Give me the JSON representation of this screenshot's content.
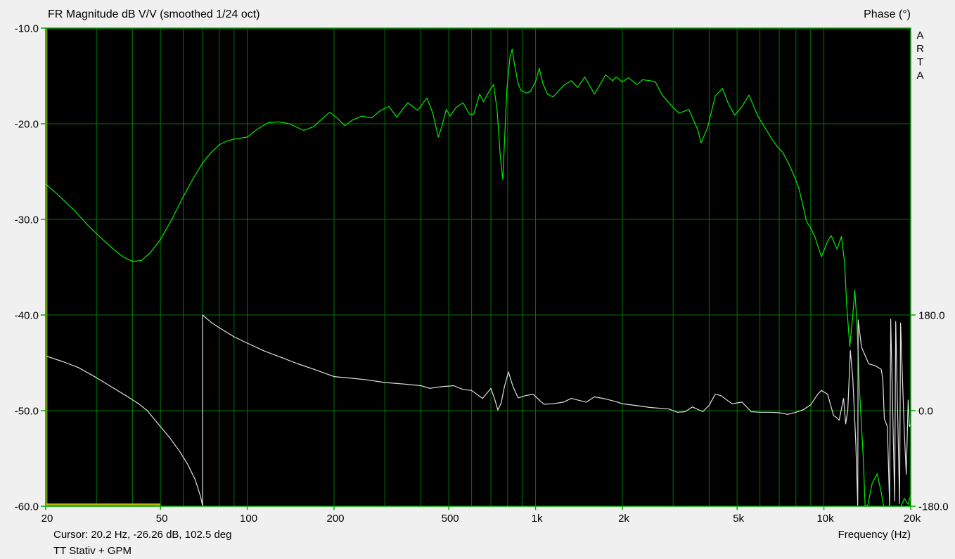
{
  "header": {
    "title": "FR Magnitude dB V/V (smoothed 1/24 oct)",
    "right_axis_title": "Phase (°)",
    "brand": "ARTA"
  },
  "footer": {
    "cursor_readout": "Cursor: 20.2 Hz, -26.26 dB, 102.5 deg",
    "x_axis_title": "Frequency (Hz)",
    "overlay_label": "TT Stativ + GPM"
  },
  "chart_data": {
    "type": "line",
    "title": "FR Magnitude dB V/V (smoothed 1/24 oct)",
    "xlabel": "Frequency (Hz)",
    "x_scale": "log",
    "x_range_hz": [
      20,
      20000
    ],
    "x_gridlines_hz": [
      20,
      30,
      40,
      50,
      60,
      70,
      80,
      90,
      100,
      200,
      300,
      400,
      500,
      600,
      700,
      800,
      900,
      1000,
      2000,
      3000,
      4000,
      5000,
      6000,
      7000,
      8000,
      9000,
      10000,
      20000
    ],
    "x_ticks": [
      {
        "value": 20,
        "label": "20"
      },
      {
        "value": 50,
        "label": "50"
      },
      {
        "value": 100,
        "label": "100"
      },
      {
        "value": 200,
        "label": "200"
      },
      {
        "value": 500,
        "label": "500"
      },
      {
        "value": 1000,
        "label": "1k"
      },
      {
        "value": 2000,
        "label": "2k"
      },
      {
        "value": 5000,
        "label": "5k"
      },
      {
        "value": 10000,
        "label": "10k"
      },
      {
        "value": 20000,
        "label": "20k"
      }
    ],
    "y_left": {
      "name": "magnitude",
      "unit": "dB",
      "range": [
        -60,
        -10
      ],
      "ticks": [
        {
          "value": -10,
          "label": "-10.0"
        },
        {
          "value": -20,
          "label": "-20.0"
        },
        {
          "value": -30,
          "label": "-30.0"
        },
        {
          "value": -40,
          "label": "-40.0"
        },
        {
          "value": -50,
          "label": "-50.0"
        },
        {
          "value": -60,
          "label": "-60.0"
        }
      ]
    },
    "y_right": {
      "name": "phase",
      "unit": "deg",
      "range": [
        -180,
        180
      ],
      "maps_to_db": [
        -60,
        -40
      ],
      "ticks": [
        {
          "value": 180,
          "label": "180.0"
        },
        {
          "value": 0,
          "label": "0.0"
        },
        {
          "value": -180,
          "label": "-180.0"
        }
      ]
    },
    "grid": true,
    "legend": false,
    "cursor": {
      "freq_hz": 20.2,
      "magnitude_db": -26.26,
      "phase_deg": 102.5
    },
    "marker_bar": {
      "from_hz": 20,
      "to_hz": 50
    },
    "colors": {
      "page_bg": "#f0f0f0",
      "plot_bg": "#000000",
      "grid": "#007800",
      "border": "#00a800",
      "magnitude": "#00ef00",
      "phase": "#e0e0e0",
      "cursor": "#e0e000",
      "marker_bar": "#b8b800",
      "text": "#000000"
    },
    "series": [
      {
        "name": "magnitude_db",
        "axis": "left",
        "points": [
          [
            20,
            -26.3
          ],
          [
            22,
            -27.4
          ],
          [
            25,
            -29.0
          ],
          [
            28,
            -30.6
          ],
          [
            31,
            -31.9
          ],
          [
            34,
            -33.0
          ],
          [
            37,
            -33.9
          ],
          [
            40,
            -34.4
          ],
          [
            43,
            -34.3
          ],
          [
            46,
            -33.5
          ],
          [
            50,
            -32.1
          ],
          [
            55,
            -29.9
          ],
          [
            60,
            -27.6
          ],
          [
            65,
            -25.7
          ],
          [
            70,
            -24.1
          ],
          [
            75,
            -23.0
          ],
          [
            80,
            -22.2
          ],
          [
            85,
            -21.8
          ],
          [
            90,
            -21.6
          ],
          [
            100,
            -21.4
          ],
          [
            108,
            -20.6
          ],
          [
            118,
            -19.9
          ],
          [
            128,
            -19.8
          ],
          [
            140,
            -20.0
          ],
          [
            157,
            -20.7
          ],
          [
            170,
            -20.3
          ],
          [
            180,
            -19.6
          ],
          [
            193,
            -18.8
          ],
          [
            205,
            -19.4
          ],
          [
            218,
            -20.2
          ],
          [
            232,
            -19.6
          ],
          [
            250,
            -19.2
          ],
          [
            270,
            -19.4
          ],
          [
            290,
            -18.6
          ],
          [
            310,
            -18.2
          ],
          [
            330,
            -19.3
          ],
          [
            360,
            -17.8
          ],
          [
            390,
            -18.6
          ],
          [
            420,
            -17.3
          ],
          [
            440,
            -18.9
          ],
          [
            460,
            -21.4
          ],
          [
            475,
            -20.1
          ],
          [
            490,
            -18.5
          ],
          [
            505,
            -19.2
          ],
          [
            530,
            -18.3
          ],
          [
            560,
            -17.8
          ],
          [
            590,
            -19.0
          ],
          [
            610,
            -19.0
          ],
          [
            640,
            -16.9
          ],
          [
            660,
            -17.7
          ],
          [
            690,
            -16.6
          ],
          [
            715,
            -15.9
          ],
          [
            735,
            -18.5
          ],
          [
            755,
            -23.5
          ],
          [
            770,
            -25.8
          ],
          [
            780,
            -22.0
          ],
          [
            795,
            -16.5
          ],
          [
            815,
            -13.0
          ],
          [
            830,
            -12.2
          ],
          [
            845,
            -13.8
          ],
          [
            870,
            -15.8
          ],
          [
            890,
            -16.5
          ],
          [
            930,
            -16.8
          ],
          [
            960,
            -16.6
          ],
          [
            1000,
            -15.6
          ],
          [
            1030,
            -14.2
          ],
          [
            1060,
            -15.8
          ],
          [
            1100,
            -16.9
          ],
          [
            1150,
            -17.2
          ],
          [
            1250,
            -16.0
          ],
          [
            1330,
            -15.5
          ],
          [
            1400,
            -16.2
          ],
          [
            1480,
            -15.1
          ],
          [
            1600,
            -16.9
          ],
          [
            1750,
            -14.9
          ],
          [
            1850,
            -15.5
          ],
          [
            1900,
            -15.1
          ],
          [
            2000,
            -15.6
          ],
          [
            2100,
            -15.2
          ],
          [
            2250,
            -15.9
          ],
          [
            2350,
            -15.4
          ],
          [
            2500,
            -15.5
          ],
          [
            2600,
            -15.6
          ],
          [
            2750,
            -17.0
          ],
          [
            3000,
            -18.3
          ],
          [
            3150,
            -18.9
          ],
          [
            3400,
            -18.5
          ],
          [
            3650,
            -20.6
          ],
          [
            3750,
            -22.0
          ],
          [
            3950,
            -20.4
          ],
          [
            4200,
            -17.1
          ],
          [
            4450,
            -16.3
          ],
          [
            4650,
            -17.8
          ],
          [
            4900,
            -19.1
          ],
          [
            5200,
            -18.2
          ],
          [
            5500,
            -17.0
          ],
          [
            5900,
            -19.2
          ],
          [
            6300,
            -20.6
          ],
          [
            6600,
            -21.6
          ],
          [
            6900,
            -22.4
          ],
          [
            7200,
            -23.0
          ],
          [
            7500,
            -24.0
          ],
          [
            7900,
            -25.5
          ],
          [
            8200,
            -26.8
          ],
          [
            8500,
            -28.8
          ],
          [
            8700,
            -30.2
          ],
          [
            9000,
            -30.9
          ],
          [
            9300,
            -31.8
          ],
          [
            9800,
            -33.9
          ],
          [
            10300,
            -32.3
          ],
          [
            10600,
            -31.7
          ],
          [
            11100,
            -33.1
          ],
          [
            11500,
            -31.8
          ],
          [
            11800,
            -34.5
          ],
          [
            12000,
            -39.0
          ],
          [
            12300,
            -43.3
          ],
          [
            12600,
            -40.0
          ],
          [
            12800,
            -37.4
          ],
          [
            13000,
            -40.5
          ],
          [
            13300,
            -48.0
          ],
          [
            13700,
            -55.0
          ],
          [
            13900,
            -60.0
          ],
          [
            14200,
            -59.9
          ],
          [
            14700,
            -57.6
          ],
          [
            15300,
            -56.6
          ],
          [
            15800,
            -58.5
          ],
          [
            16100,
            -60.0
          ],
          [
            18500,
            -60.0
          ],
          [
            19000,
            -59.2
          ],
          [
            19600,
            -59.8
          ],
          [
            20000,
            -58.8
          ]
        ]
      },
      {
        "name": "phase_deg",
        "axis": "right",
        "points": [
          [
            20,
            103
          ],
          [
            23,
            92
          ],
          [
            26,
            81
          ],
          [
            30,
            62
          ],
          [
            34,
            44
          ],
          [
            38,
            28
          ],
          [
            42,
            13
          ],
          [
            45,
            0
          ],
          [
            50,
            -30
          ],
          [
            54,
            -52
          ],
          [
            58,
            -75
          ],
          [
            62,
            -100
          ],
          [
            66,
            -130
          ],
          [
            69,
            -163
          ],
          [
            70,
            -180
          ],
          [
            70,
            180
          ],
          [
            75,
            166
          ],
          [
            80,
            156
          ],
          [
            90,
            139
          ],
          [
            100,
            127
          ],
          [
            115,
            112
          ],
          [
            130,
            101
          ],
          [
            150,
            88
          ],
          [
            170,
            78
          ],
          [
            200,
            64
          ],
          [
            230,
            61
          ],
          [
            260,
            58
          ],
          [
            300,
            53
          ],
          [
            350,
            50
          ],
          [
            400,
            47
          ],
          [
            430,
            42
          ],
          [
            470,
            45
          ],
          [
            520,
            47
          ],
          [
            560,
            40
          ],
          [
            600,
            38
          ],
          [
            655,
            23
          ],
          [
            700,
            42
          ],
          [
            723,
            20
          ],
          [
            740,
            1
          ],
          [
            760,
            15
          ],
          [
            780,
            45
          ],
          [
            805,
            73
          ],
          [
            835,
            45
          ],
          [
            870,
            24
          ],
          [
            920,
            28
          ],
          [
            980,
            31
          ],
          [
            1030,
            20
          ],
          [
            1070,
            12
          ],
          [
            1150,
            13
          ],
          [
            1250,
            16
          ],
          [
            1330,
            23
          ],
          [
            1400,
            20
          ],
          [
            1500,
            16
          ],
          [
            1600,
            26
          ],
          [
            1750,
            22
          ],
          [
            1900,
            17
          ],
          [
            2000,
            13
          ],
          [
            2200,
            10
          ],
          [
            2500,
            6
          ],
          [
            2900,
            3
          ],
          [
            3100,
            -3
          ],
          [
            3300,
            -2
          ],
          [
            3500,
            7
          ],
          [
            3800,
            -2
          ],
          [
            4000,
            10
          ],
          [
            4200,
            31
          ],
          [
            4400,
            28
          ],
          [
            4800,
            13
          ],
          [
            5200,
            16
          ],
          [
            5600,
            -2
          ],
          [
            6000,
            -3
          ],
          [
            6500,
            -3
          ],
          [
            7000,
            -4
          ],
          [
            7500,
            -7
          ],
          [
            8000,
            -3
          ],
          [
            8500,
            2
          ],
          [
            9000,
            11
          ],
          [
            9500,
            30
          ],
          [
            9800,
            38
          ],
          [
            10300,
            31
          ],
          [
            10800,
            -9
          ],
          [
            11000,
            -12
          ],
          [
            11300,
            -18
          ],
          [
            11700,
            23
          ],
          [
            11900,
            -25
          ],
          [
            12100,
            0
          ],
          [
            12350,
            113
          ],
          [
            12600,
            60
          ],
          [
            12900,
            -60
          ],
          [
            13100,
            -178
          ],
          [
            13150,
            171
          ],
          [
            13500,
            120
          ],
          [
            14300,
            88
          ],
          [
            15000,
            85
          ],
          [
            15800,
            78
          ],
          [
            16000,
            60
          ],
          [
            16200,
            -15
          ],
          [
            16600,
            -30
          ],
          [
            16900,
            -178
          ],
          [
            17050,
            172
          ],
          [
            17600,
            -170
          ],
          [
            17750,
            168
          ],
          [
            18300,
            -175
          ],
          [
            18450,
            165
          ],
          [
            19000,
            -40
          ],
          [
            19300,
            -120
          ],
          [
            19600,
            20
          ],
          [
            19800,
            -30
          ],
          [
            20000,
            -25
          ]
        ]
      }
    ]
  }
}
